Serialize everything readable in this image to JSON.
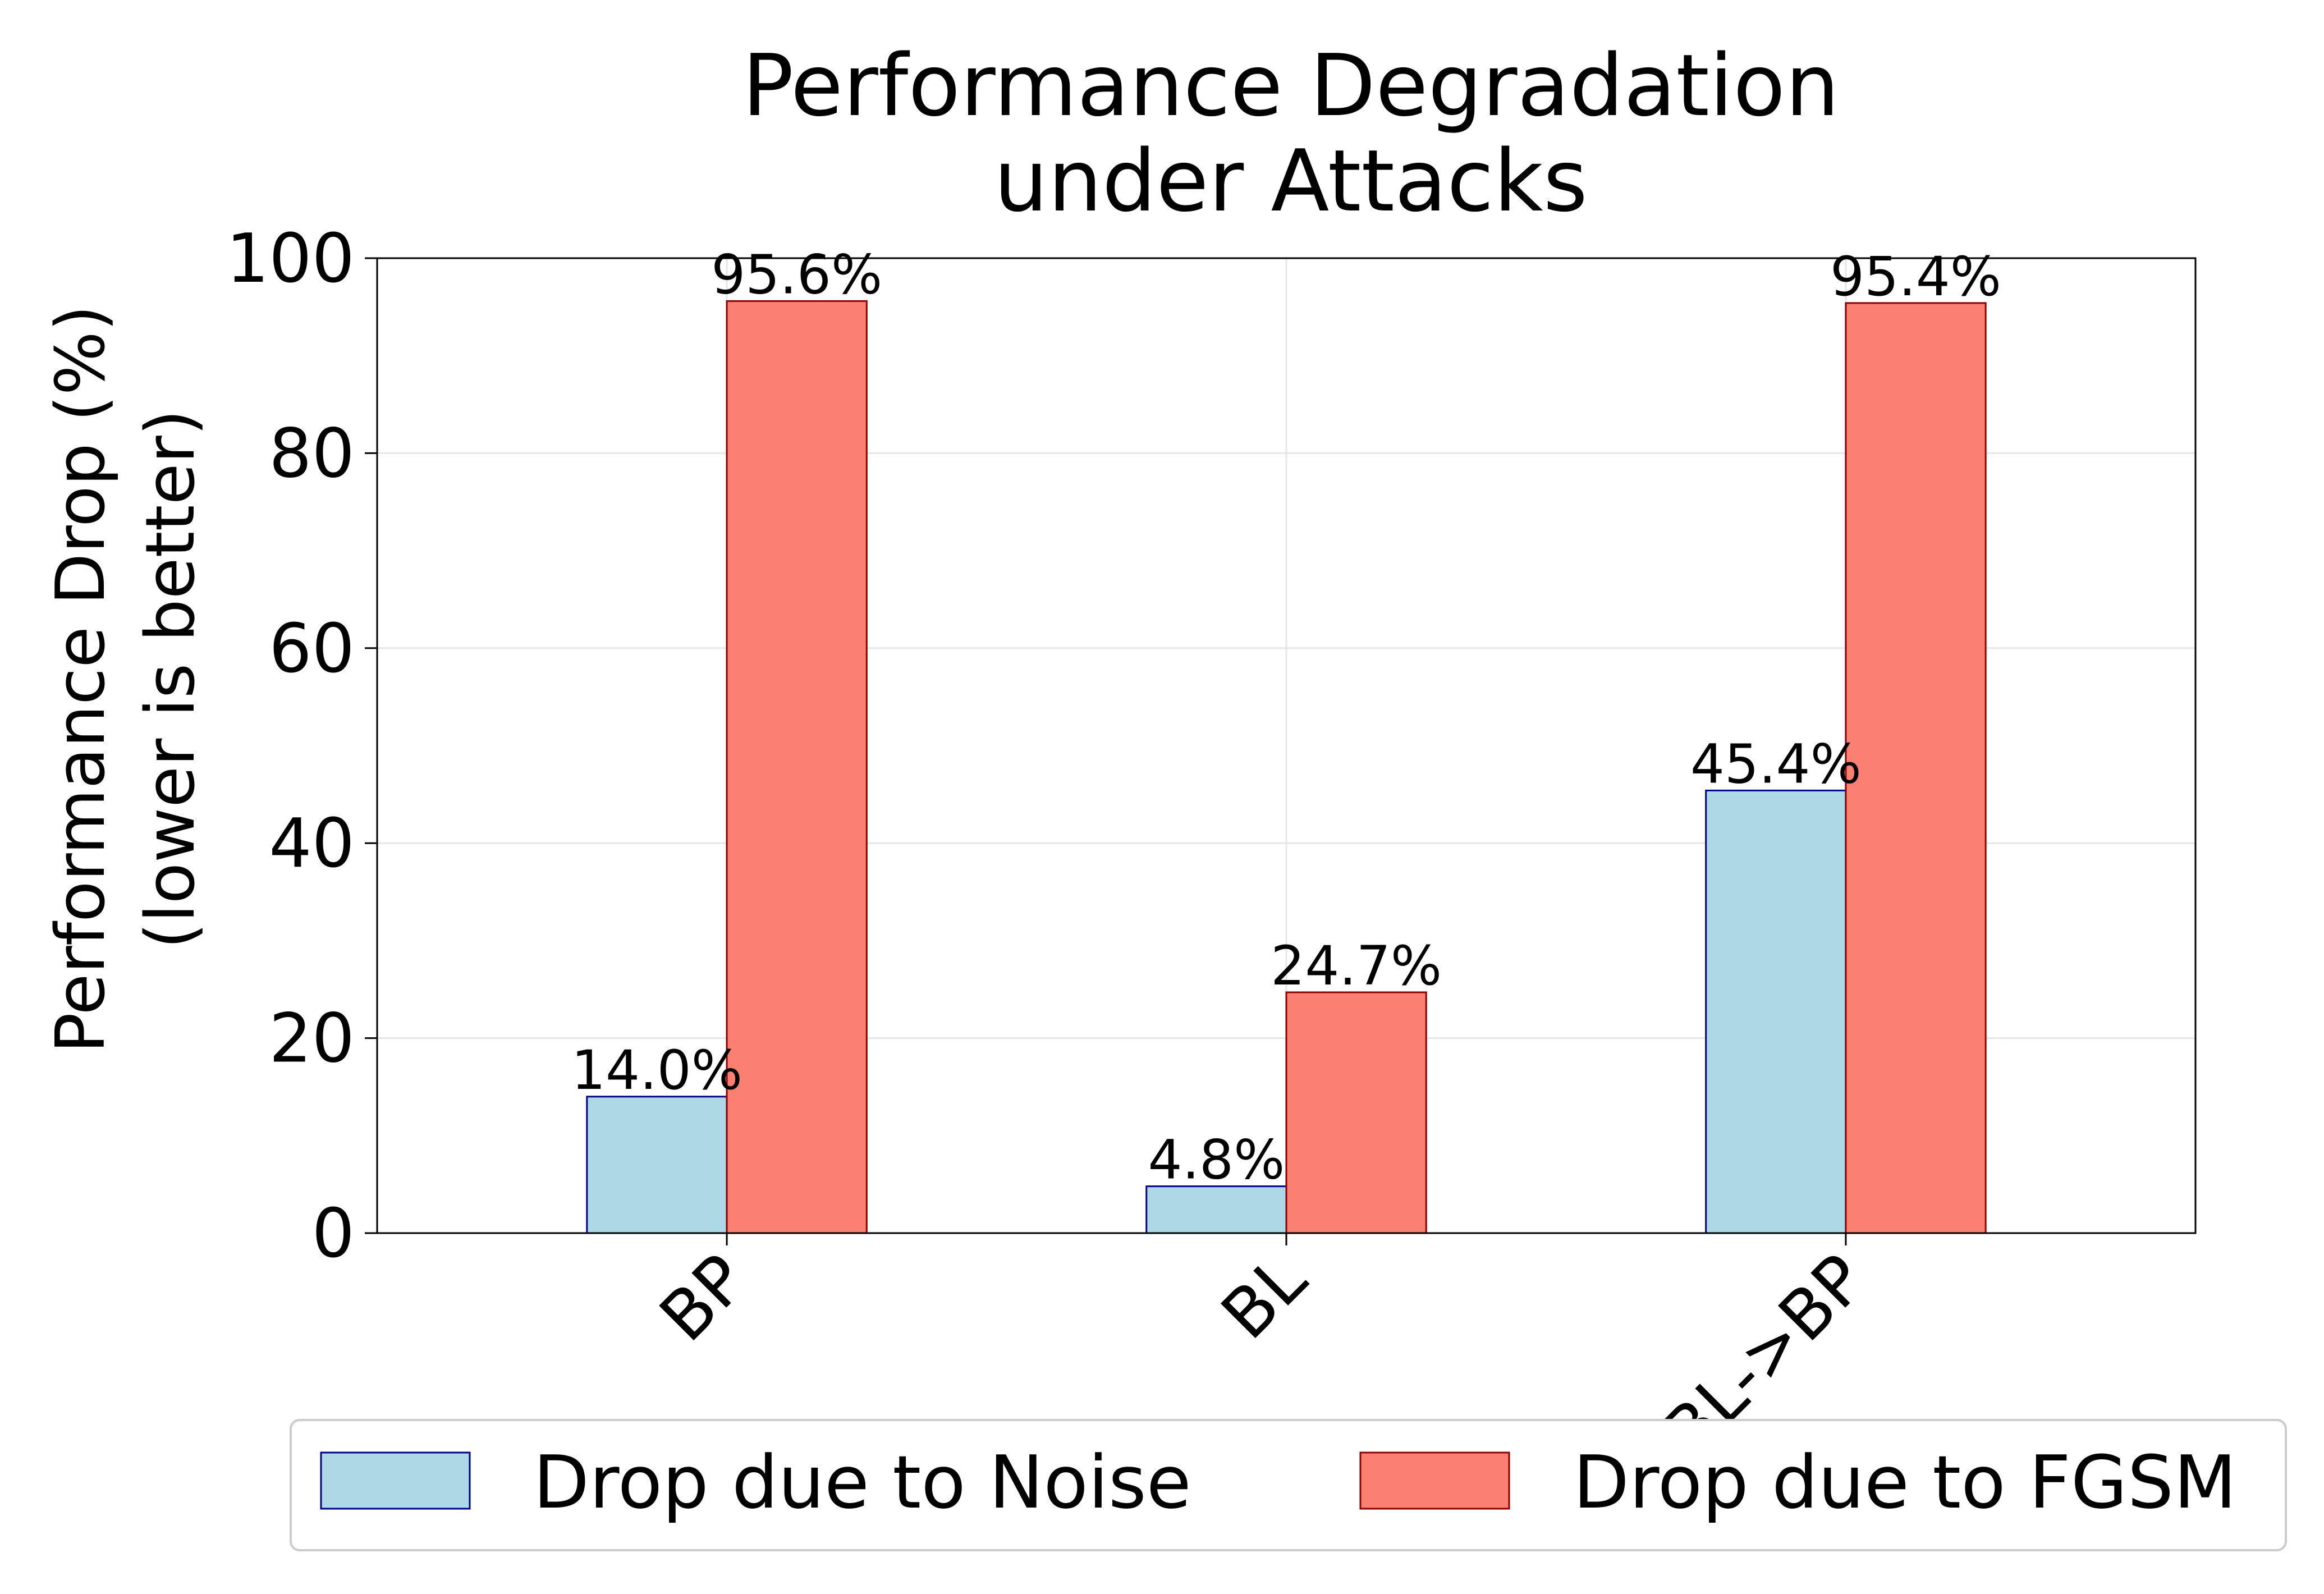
{
  "chart_data": {
    "type": "bar",
    "title": [
      "Performance Degradation",
      "under Attacks"
    ],
    "ylabel": [
      "Performance Drop (%)",
      "(lower is better)"
    ],
    "xlabel": "",
    "categories": [
      "BP",
      "BL",
      "BL->BP"
    ],
    "series": [
      {
        "name": "Drop due to Noise",
        "values": [
          14.0,
          4.8,
          45.4
        ],
        "labels": [
          "14.0%",
          "4.8%",
          "45.4%"
        ],
        "color": "#add8e6",
        "edge": "#000080"
      },
      {
        "name": "Drop due to FGSM",
        "values": [
          95.6,
          24.7,
          95.4
        ],
        "labels": [
          "95.6%",
          "24.7%",
          "95.4%"
        ],
        "color": "#fa8072",
        "edge": "#8b0000"
      }
    ],
    "ylim": [
      0,
      100
    ],
    "yticks": [
      0,
      20,
      40,
      60,
      80,
      100
    ],
    "grid": true,
    "legend": "bottom"
  }
}
